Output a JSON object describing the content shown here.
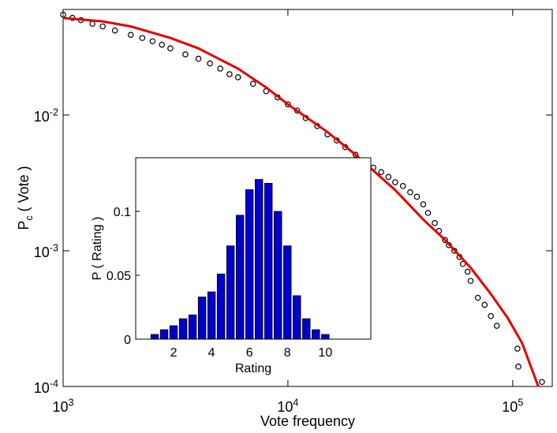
{
  "chart_data": [
    {
      "type": "scatter",
      "xlabel": "Vote frequency",
      "ylabel": "P_c ( Vote )",
      "xscale": "log",
      "yscale": "log",
      "xlim": [
        1000,
        150000
      ],
      "ylim": [
        0.0001,
        0.06
      ],
      "xticks": [
        {
          "value": 1000,
          "label": "10^3"
        },
        {
          "value": 10000,
          "label": "10^4"
        },
        {
          "value": 100000,
          "label": "10^5"
        }
      ],
      "yticks": [
        {
          "value": 0.0001,
          "label": "10^-4"
        },
        {
          "value": 0.001,
          "label": "10^-3"
        },
        {
          "value": 0.01,
          "label": "10^-2"
        }
      ],
      "points": {
        "color": "#000000",
        "x": [
          1000,
          1100,
          1200,
          1350,
          1500,
          1700,
          2000,
          2250,
          2500,
          2750,
          3000,
          3500,
          4000,
          4500,
          5000,
          5500,
          6000,
          7000,
          8000,
          9000,
          10000,
          11000,
          12000,
          13500,
          15000,
          16500,
          18000,
          20000,
          22000,
          24000,
          26000,
          28000,
          30000,
          32500,
          35000,
          37500,
          40000,
          42000,
          45000,
          47000,
          50000,
          52000,
          55000,
          58000,
          60000,
          63000,
          65000,
          70000,
          75000,
          80000,
          85000,
          105000,
          106000,
          135000
        ],
        "y": [
          0.055,
          0.052,
          0.05,
          0.047,
          0.045,
          0.042,
          0.039,
          0.037,
          0.035,
          0.033,
          0.031,
          0.028,
          0.026,
          0.024,
          0.022,
          0.02,
          0.019,
          0.017,
          0.015,
          0.0135,
          0.012,
          0.0108,
          0.0095,
          0.0083,
          0.0072,
          0.0065,
          0.0058,
          0.0051,
          0.0045,
          0.0041,
          0.0038,
          0.0035,
          0.0032,
          0.003,
          0.0027,
          0.0025,
          0.0022,
          0.0019,
          0.0016,
          0.0014,
          0.0012,
          0.0011,
          0.001,
          0.0009,
          0.0008,
          0.0007,
          0.0006,
          0.00045,
          0.0004,
          0.00033,
          0.00028,
          0.00019,
          0.00014,
          0.000108
        ]
      },
      "fit": {
        "color": "#e60000",
        "x": [
          1000,
          1500,
          2000,
          3000,
          4000,
          6000,
          8000,
          10000,
          15000,
          20000,
          30000,
          40000,
          50000,
          65000,
          80000,
          95000,
          110000,
          130000
        ],
        "y": [
          0.052,
          0.049,
          0.045,
          0.037,
          0.031,
          0.022,
          0.016,
          0.012,
          0.0075,
          0.0051,
          0.0028,
          0.0017,
          0.0012,
          0.00075,
          0.00048,
          0.00032,
          0.00021,
          0.0001
        ]
      }
    },
    {
      "type": "bar",
      "xlabel": "Rating",
      "ylabel": "P ( Rating )",
      "xlim": [
        0,
        12.4
      ],
      "ylim": [
        0,
        0.142
      ],
      "xticks": [
        2,
        4,
        6,
        8,
        10
      ],
      "yticks": [
        0,
        0.05,
        0.1
      ],
      "color": "#0000cc",
      "x": [
        1,
        1.5,
        2,
        2.5,
        3,
        3.5,
        4,
        4.5,
        5,
        5.5,
        6,
        6.5,
        7,
        7.5,
        8,
        8.5,
        9,
        9.5,
        10
      ],
      "values": [
        0.0037,
        0.0074,
        0.0105,
        0.016,
        0.019,
        0.033,
        0.037,
        0.051,
        0.073,
        0.097,
        0.117,
        0.125,
        0.122,
        0.1,
        0.073,
        0.034,
        0.016,
        0.0074,
        0.0037
      ]
    }
  ]
}
